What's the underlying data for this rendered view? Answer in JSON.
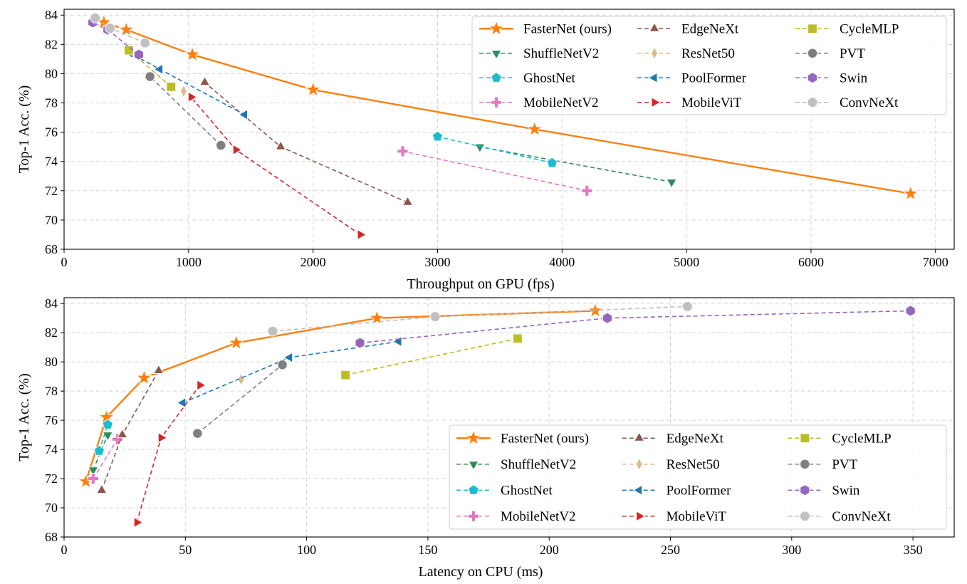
{
  "chart_data": [
    {
      "type": "line",
      "xlabel": "Throughput on GPU (fps)",
      "ylabel": "Top-1 Acc. (%)",
      "xlim": [
        0,
        7150
      ],
      "ylim": [
        68,
        84.4
      ],
      "xticks": [
        0,
        1000,
        2000,
        3000,
        4000,
        5000,
        6000,
        7000
      ],
      "yticks": [
        68,
        70,
        72,
        74,
        76,
        78,
        80,
        82,
        84
      ],
      "grid": true,
      "legend_position": "top-right",
      "series": [
        {
          "name": "FasterNet (ours)",
          "color": "#ff7f0e",
          "marker": "star",
          "style": "solid",
          "points": [
            [
              6800,
              71.8
            ],
            [
              3780,
              76.2
            ],
            [
              2000,
              78.9
            ],
            [
              1030,
              81.3
            ],
            [
              500,
              83.0
            ],
            [
              320,
              83.5
            ]
          ]
        },
        {
          "name": "ShuffleNetV2",
          "color": "#2e8b57",
          "marker": "triangle-down",
          "style": "dashed",
          "points": [
            [
              4880,
              72.6
            ],
            [
              3340,
              75.0
            ]
          ]
        },
        {
          "name": "GhostNet",
          "color": "#17becf",
          "marker": "pentagon",
          "style": "dashed",
          "points": [
            [
              3920,
              73.9
            ],
            [
              3000,
              75.7
            ]
          ]
        },
        {
          "name": "MobileNetV2",
          "color": "#e377c2",
          "marker": "plus",
          "style": "dashed",
          "points": [
            [
              4200,
              72.0
            ],
            [
              2720,
              74.7
            ]
          ]
        },
        {
          "name": "EdgeNeXt",
          "color": "#8c564b",
          "marker": "triangle-up",
          "style": "dashed",
          "points": [
            [
              2760,
              71.2
            ],
            [
              1740,
              75.0
            ],
            [
              1130,
              79.4
            ]
          ]
        },
        {
          "name": "ResNet50",
          "color": "#deb887",
          "marker": "thin-diamond",
          "style": "dashed",
          "points": [
            [
              960,
              78.8
            ]
          ]
        },
        {
          "name": "PoolFormer",
          "color": "#1f77b4",
          "marker": "triangle-left",
          "style": "dashed",
          "points": [
            [
              1450,
              77.2
            ],
            [
              770,
              80.3
            ],
            [
              530,
              81.4
            ]
          ]
        },
        {
          "name": "MobileViT",
          "color": "#d62728",
          "marker": "triangle-right",
          "style": "dashed",
          "points": [
            [
              2380,
              69.0
            ],
            [
              1380,
              74.8
            ],
            [
              1020,
              78.4
            ]
          ]
        },
        {
          "name": "CycleMLP",
          "color": "#bcbd22",
          "marker": "square",
          "style": "dashed",
          "points": [
            [
              860,
              79.1
            ],
            [
              520,
              81.6
            ]
          ]
        },
        {
          "name": "PVT",
          "color": "#7f7f7f",
          "marker": "circle",
          "style": "dashed",
          "points": [
            [
              1260,
              75.1
            ],
            [
              690,
              79.8
            ]
          ]
        },
        {
          "name": "Swin",
          "color": "#9467bd",
          "marker": "hexagon",
          "style": "dashed",
          "points": [
            [
              600,
              81.3
            ],
            [
              350,
              83.0
            ],
            [
              230,
              83.5
            ]
          ]
        },
        {
          "name": "ConvNeXt",
          "color": "#c0c0c0",
          "marker": "octagon",
          "style": "dashed",
          "points": [
            [
              650,
              82.1
            ],
            [
              370,
              83.1
            ],
            [
              250,
              83.8
            ]
          ]
        }
      ]
    },
    {
      "type": "line",
      "xlabel": "Latency on CPU (ms)",
      "ylabel": "Top-1 Acc. (%)",
      "xlim": [
        0,
        367
      ],
      "ylim": [
        68,
        84.4
      ],
      "xticks": [
        0,
        50,
        100,
        150,
        200,
        250,
        300,
        350
      ],
      "yticks": [
        68,
        70,
        72,
        74,
        76,
        78,
        80,
        82,
        84
      ],
      "grid": true,
      "legend_position": "lower-right",
      "series": [
        {
          "name": "FasterNet (ours)",
          "color": "#ff7f0e",
          "marker": "star",
          "style": "solid",
          "points": [
            [
              9,
              71.8
            ],
            [
              17.5,
              76.2
            ],
            [
              33,
              78.9
            ],
            [
              71,
              81.3
            ],
            [
              129,
              83.0
            ],
            [
              219,
              83.5
            ]
          ]
        },
        {
          "name": "ShuffleNetV2",
          "color": "#2e8b57",
          "marker": "triangle-down",
          "style": "dashed",
          "points": [
            [
              12,
              72.6
            ],
            [
              18,
              75.0
            ]
          ]
        },
        {
          "name": "GhostNet",
          "color": "#17becf",
          "marker": "pentagon",
          "style": "dashed",
          "points": [
            [
              14.5,
              73.9
            ],
            [
              18,
              75.7
            ]
          ]
        },
        {
          "name": "MobileNetV2",
          "color": "#e377c2",
          "marker": "plus",
          "style": "dashed",
          "points": [
            [
              12,
              72.0
            ],
            [
              22,
              74.7
            ]
          ]
        },
        {
          "name": "EdgeNeXt",
          "color": "#8c564b",
          "marker": "triangle-up",
          "style": "dashed",
          "points": [
            [
              15.5,
              71.2
            ],
            [
              24,
              75.0
            ],
            [
              39,
              79.4
            ]
          ]
        },
        {
          "name": "ResNet50",
          "color": "#deb887",
          "marker": "thin-diamond",
          "style": "dashed",
          "points": [
            [
              73,
              78.8
            ]
          ]
        },
        {
          "name": "PoolFormer",
          "color": "#1f77b4",
          "marker": "triangle-left",
          "style": "dashed",
          "points": [
            [
              49,
              77.2
            ],
            [
              93,
              80.3
            ],
            [
              138,
              81.4
            ]
          ]
        },
        {
          "name": "MobileViT",
          "color": "#d62728",
          "marker": "triangle-right",
          "style": "dashed",
          "points": [
            [
              30,
              69.0
            ],
            [
              40,
              74.8
            ],
            [
              56,
              78.4
            ]
          ]
        },
        {
          "name": "CycleMLP",
          "color": "#bcbd22",
          "marker": "square",
          "style": "dashed",
          "points": [
            [
              116,
              79.1
            ],
            [
              187,
              81.6
            ]
          ]
        },
        {
          "name": "PVT",
          "color": "#7f7f7f",
          "marker": "circle",
          "style": "dashed",
          "points": [
            [
              55,
              75.1
            ],
            [
              90,
              79.8
            ]
          ]
        },
        {
          "name": "Swin",
          "color": "#9467bd",
          "marker": "hexagon",
          "style": "dashed",
          "points": [
            [
              122,
              81.3
            ],
            [
              224,
              83.0
            ],
            [
              349,
              83.5
            ]
          ]
        },
        {
          "name": "ConvNeXt",
          "color": "#c0c0c0",
          "marker": "octagon",
          "style": "dashed",
          "points": [
            [
              86,
              82.1
            ],
            [
              153,
              83.1
            ],
            [
              257,
              83.8
            ]
          ]
        }
      ]
    }
  ]
}
